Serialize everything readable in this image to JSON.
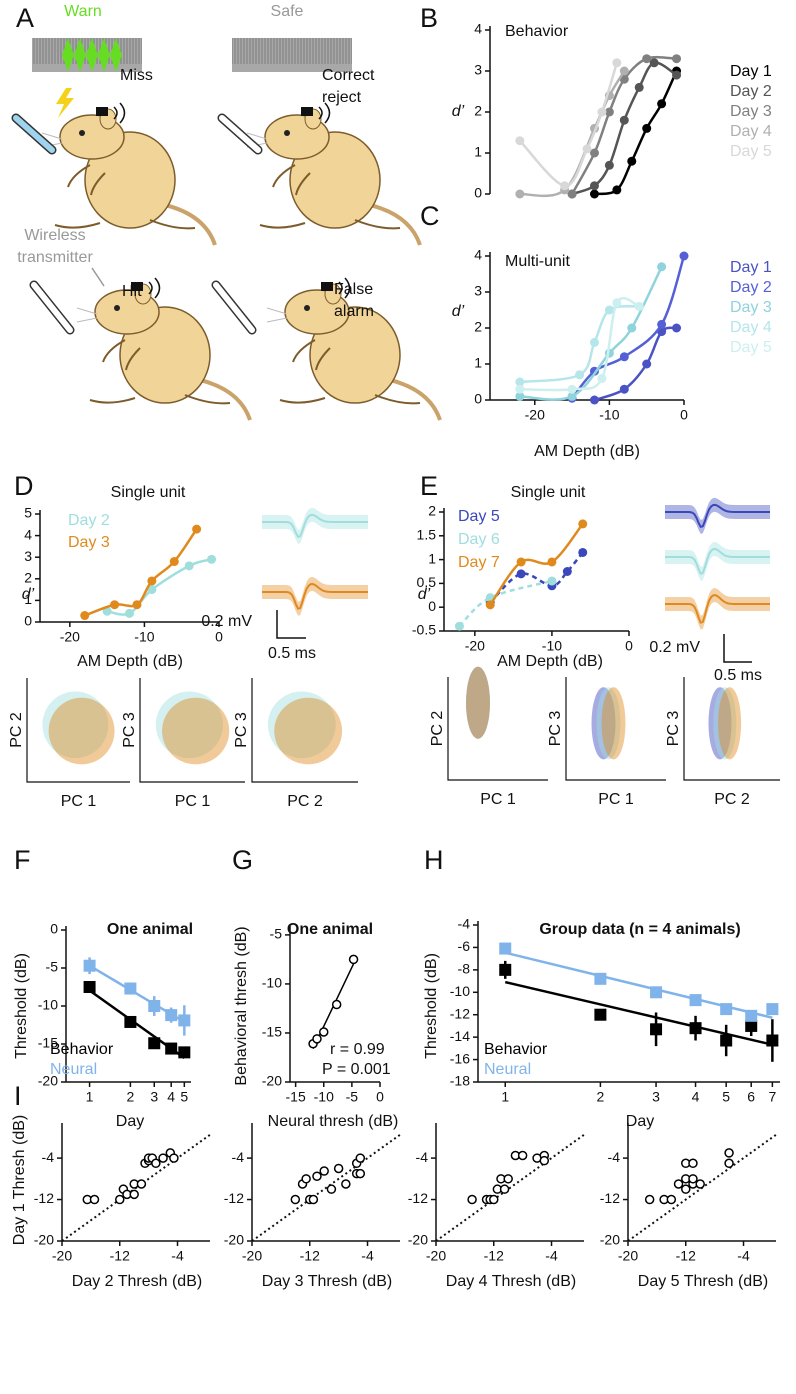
{
  "illustration": {
    "panel": "A",
    "warn": "Warn",
    "safe": "Safe",
    "miss": "Miss",
    "correct_reject": [
      "Correct",
      "reject"
    ],
    "transmitter": [
      "Wireless",
      "transmitter"
    ],
    "hit": "Hit",
    "false_alarm": [
      "False",
      "alarm"
    ]
  },
  "chart_data": [
    {
      "panel": "B",
      "type": "line",
      "title": "Behavior",
      "ylabel": "d’",
      "xlim": [
        -26,
        0
      ],
      "ylim": [
        0,
        4
      ],
      "yticks": [
        0,
        1,
        2,
        3,
        4
      ],
      "series": [
        {
          "name": "Day 1",
          "color": "#000000",
          "x": [
            -12,
            -9,
            -7,
            -5,
            -3,
            -1
          ],
          "values": [
            0,
            0.1,
            0.8,
            1.6,
            2.2,
            3.0
          ]
        },
        {
          "name": "Day 2",
          "color": "#555555",
          "x": [
            -15,
            -12,
            -10,
            -8,
            -6,
            -4,
            -1
          ],
          "values": [
            0,
            0.2,
            0.7,
            1.8,
            2.6,
            3.2,
            2.9
          ]
        },
        {
          "name": "Day 3",
          "color": "#808080",
          "x": [
            -15,
            -12,
            -10,
            -8,
            -5,
            -1
          ],
          "values": [
            0,
            1.0,
            2.0,
            2.8,
            3.3,
            3.3
          ]
        },
        {
          "name": "Day 4",
          "color": "#b0b0b0",
          "x": [
            -22,
            -16,
            -12,
            -10,
            -8
          ],
          "values": [
            0,
            0.1,
            1.6,
            2.4,
            3.0
          ]
        },
        {
          "name": "Day 5",
          "color": "#d8d8d8",
          "x": [
            -22,
            -16,
            -13,
            -11,
            -9
          ],
          "values": [
            1.3,
            0.2,
            1.1,
            2.0,
            3.2
          ]
        }
      ]
    },
    {
      "panel": "C",
      "type": "line",
      "title": "Multi-unit",
      "xlabel": "AM Depth (dB)",
      "ylabel": "d’",
      "xlim": [
        -26,
        0
      ],
      "xticks": [
        -20,
        -10,
        0
      ],
      "ylim": [
        0,
        4
      ],
      "yticks": [
        0,
        1,
        2,
        3,
        4
      ],
      "series": [
        {
          "name": "Day 1",
          "color": "#4a52c4",
          "x": [
            -12,
            -8,
            -5,
            -3,
            -1
          ],
          "values": [
            0,
            0.3,
            1.0,
            1.9,
            2.0
          ]
        },
        {
          "name": "Day 2",
          "color": "#5560d6",
          "x": [
            -15,
            -12,
            -8,
            -3,
            0
          ],
          "values": [
            0.05,
            0.8,
            1.2,
            2.1,
            4.0
          ]
        },
        {
          "name": "Day 3",
          "color": "#8fd3dd",
          "x": [
            -22,
            -15,
            -10,
            -7,
            -3
          ],
          "values": [
            0.1,
            0.1,
            1.3,
            2.0,
            3.7
          ]
        },
        {
          "name": "Day 4",
          "color": "#b5e6ea",
          "x": [
            -22,
            -14,
            -12,
            -10,
            -6
          ],
          "values": [
            0.5,
            0.7,
            1.6,
            2.5,
            2.6
          ]
        },
        {
          "name": "Day 5",
          "color": "#cdeff0",
          "x": [
            -22,
            -15,
            -11,
            -9,
            -6
          ],
          "values": [
            0.3,
            0.3,
            0.6,
            2.7,
            2.6
          ]
        }
      ]
    },
    {
      "panel": "D",
      "type": "line",
      "title": "Single unit",
      "xlabel": "AM Depth (dB)",
      "ylabel": "d’",
      "xlim": [
        -24,
        0
      ],
      "xticks": [
        -20,
        -10,
        0
      ],
      "ylim": [
        0,
        5
      ],
      "yticks": [
        0,
        1,
        2,
        3,
        4,
        5
      ],
      "series": [
        {
          "name": "Day 2",
          "color": "#a0dede",
          "x": [
            -15,
            -12,
            -9,
            -4,
            -1
          ],
          "values": [
            0.5,
            0.4,
            1.5,
            2.6,
            2.9
          ]
        },
        {
          "name": "Day 3",
          "color": "#e08a1e",
          "x": [
            -18,
            -14,
            -11,
            -9,
            -6,
            -3
          ],
          "values": [
            0.3,
            0.8,
            0.8,
            1.9,
            2.8,
            4.3
          ]
        }
      ],
      "scale_bar": {
        "amplitude": "0.2 mV",
        "duration": "0.5 ms"
      },
      "pc_plots": [
        {
          "y": "PC 2",
          "x": "PC 1"
        },
        {
          "y": "PC 3",
          "x": "PC 1"
        },
        {
          "y": "PC 3",
          "x": "PC 2"
        }
      ]
    },
    {
      "panel": "E",
      "type": "line",
      "title": "Single unit",
      "xlabel": "AM Depth (dB)",
      "ylabel": "d’",
      "xlim": [
        -24,
        0
      ],
      "xticks": [
        -20,
        -10,
        0
      ],
      "ylim": [
        -0.5,
        2
      ],
      "yticks": [
        -0.5,
        0,
        0.5,
        1,
        1.5,
        2
      ],
      "series": [
        {
          "name": "Day 5",
          "color": "#3a48bc",
          "dashed": true,
          "x": [
            -18,
            -14,
            -10,
            -8,
            -6
          ],
          "values": [
            0.1,
            0.7,
            0.45,
            0.75,
            1.15
          ]
        },
        {
          "name": "Day 6",
          "color": "#a0dede",
          "dashed": true,
          "x": [
            -22,
            -18,
            -10
          ],
          "values": [
            -0.4,
            0.2,
            0.55
          ]
        },
        {
          "name": "Day 7",
          "color": "#e08a1e",
          "x": [
            -18,
            -14,
            -10,
            -6
          ],
          "values": [
            0.05,
            0.95,
            0.95,
            1.75
          ]
        }
      ],
      "scale_bar": {
        "amplitude": "0.2 mV",
        "duration": "0.5 ms"
      },
      "pc_plots": [
        {
          "y": "PC 2",
          "x": "PC 1"
        },
        {
          "y": "PC 3",
          "x": "PC 1"
        },
        {
          "y": "PC 3",
          "x": "PC 2"
        }
      ]
    },
    {
      "panel": "F",
      "type": "errorbar",
      "title": "One animal",
      "xlabel": "Day",
      "ylabel": "Threshold (dB)",
      "xscale": "log",
      "x": [
        1,
        2,
        3,
        4,
        5
      ],
      "xlim": [
        0.67,
        5.6
      ],
      "xticks": [
        1,
        2,
        3,
        4,
        5
      ],
      "ylim": [
        -20,
        0
      ],
      "yticks": [
        0,
        -5,
        -10,
        -15,
        -20
      ],
      "series": [
        {
          "name": "Behavior",
          "color": "#000000",
          "values": [
            -7.5,
            -12.1,
            -14.9,
            -15.6,
            -16.1
          ]
        },
        {
          "name": "Neural",
          "color": "#80b3ea",
          "values": [
            -4.7,
            -7.7,
            -10,
            -11.2,
            -11.9
          ],
          "errors": [
            1.1,
            0.8,
            1.3,
            1,
            2
          ]
        }
      ]
    },
    {
      "panel": "G",
      "type": "scatter",
      "title": "One animal",
      "xlabel": "Neural thresh (dB)",
      "ylabel": "Behavioral thresh (dB)",
      "xlim": [
        -16,
        0
      ],
      "xticks": [
        -15,
        -10,
        -5,
        0
      ],
      "ylim": [
        -20,
        -4.5
      ],
      "yticks": [
        -5,
        -10,
        -15,
        -20
      ],
      "fit": true,
      "annotations": [
        "r = 0.99",
        "P = 0.001"
      ],
      "series": [
        {
          "color": "#000000",
          "x": [
            -11.9,
            -11.2,
            -10,
            -7.7,
            -4.7
          ],
          "values": [
            -16.1,
            -15.6,
            -14.9,
            -12.1,
            -7.5
          ]
        }
      ]
    },
    {
      "panel": "H",
      "type": "errorbar",
      "title": "Group data (n = 4 animals)",
      "xlabel": "Day",
      "ylabel": "Threshold (dB)",
      "xscale": "log",
      "x": [
        1,
        2,
        3,
        4,
        5,
        6,
        7
      ],
      "xlim": [
        0.82,
        7.4
      ],
      "xticks": [
        1,
        2,
        3,
        4,
        5,
        6,
        7
      ],
      "ylim": [
        -18,
        -4
      ],
      "yticks": [
        -4,
        -6,
        -8,
        -10,
        -12,
        -14,
        -16,
        -18
      ],
      "series": [
        {
          "name": "Behavior",
          "color": "#000000",
          "values": [
            -8,
            -12,
            -13.3,
            -13.2,
            -14.3,
            -13,
            -14.3
          ],
          "errors": [
            0.8,
            0.3,
            1.5,
            1.1,
            1.4,
            0.9,
            1.9
          ]
        },
        {
          "name": "Neural",
          "color": "#80b3ea",
          "values": [
            -6.1,
            -8.8,
            -10,
            -10.7,
            -11.5,
            -12.1,
            -11.5
          ],
          "errors": [
            0.5,
            0.3,
            0.4,
            0.5,
            0.4,
            0.3,
            0.5
          ]
        }
      ]
    },
    {
      "panel": "I",
      "type": "scatter",
      "xlabel": "Day 2 Thresh (dB)",
      "ylabel": "Day 1 Thresh (dB)",
      "xlim": [
        -20,
        0.5
      ],
      "xticks": [
        -20,
        -12,
        -4
      ],
      "ylim": [
        -20,
        2
      ],
      "yticks": [
        -20,
        -12,
        -4
      ],
      "diagonal": true,
      "series": [
        {
          "color": "#000000",
          "x": [
            -16.5,
            -15.5,
            -12,
            -11.5,
            -11,
            -10,
            -10,
            -9,
            -8.5,
            -8,
            -8,
            -7.5,
            -7,
            -6,
            -5,
            -4.5
          ],
          "values": [
            -12,
            -12,
            -12,
            -10,
            -11,
            -11,
            -9,
            -9,
            -5,
            -4.5,
            -4,
            -4,
            -5,
            -4,
            -3,
            -4
          ]
        }
      ]
    },
    {
      "type": "scatter",
      "xlabel": "Day 3 Thresh (dB)",
      "xlim": [
        -20,
        0.5
      ],
      "xticks": [
        -20,
        -12,
        -4
      ],
      "ylim": [
        -20,
        2
      ],
      "yticks": [
        -20,
        -12,
        -4
      ],
      "diagonal": true,
      "series": [
        {
          "color": "#000000",
          "x": [
            -14,
            -13,
            -12.5,
            -12,
            -11.5,
            -11,
            -10,
            -9,
            -8,
            -7,
            -5.5,
            -5.5,
            -5,
            -5
          ],
          "values": [
            -12,
            -9,
            -8,
            -12,
            -12,
            -7.5,
            -6.5,
            -10,
            -6,
            -9,
            -7,
            -5,
            -4,
            -7
          ]
        }
      ]
    },
    {
      "type": "scatter",
      "xlabel": "Day 4 Thresh (dB)",
      "xlim": [
        -20,
        0.5
      ],
      "xticks": [
        -20,
        -12,
        -4
      ],
      "ylim": [
        -20,
        2
      ],
      "yticks": [
        -20,
        -12,
        -4
      ],
      "diagonal": true,
      "series": [
        {
          "color": "#000000",
          "x": [
            -15,
            -13,
            -12.5,
            -12,
            -11.5,
            -11,
            -10.5,
            -10,
            -9,
            -8,
            -6,
            -5,
            -5
          ],
          "values": [
            -12,
            -12,
            -12,
            -12,
            -10,
            -8,
            -10,
            -8,
            -3.5,
            -3.5,
            -4,
            -3.5,
            -4.5
          ]
        }
      ]
    },
    {
      "type": "scatter",
      "xlabel": "Day 5 Thresh (dB)",
      "xlim": [
        -20,
        0.5
      ],
      "xticks": [
        -20,
        -12,
        -4
      ],
      "ylim": [
        -20,
        2
      ],
      "yticks": [
        -20,
        -12,
        -4
      ],
      "diagonal": true,
      "series": [
        {
          "color": "#000000",
          "x": [
            -17,
            -15,
            -14,
            -13,
            -12,
            -12,
            -11,
            -11,
            -10,
            -12,
            -11,
            -6,
            -6
          ],
          "values": [
            -12,
            -12,
            -12,
            -9,
            -8,
            -10,
            -9,
            -8,
            -9,
            -5,
            -5,
            -3,
            -5
          ]
        }
      ]
    }
  ]
}
